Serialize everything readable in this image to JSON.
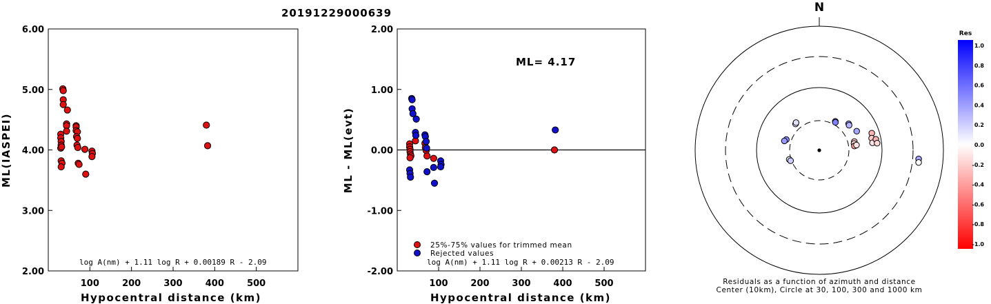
{
  "title": "20191229000639",
  "colors": {
    "accepted": "#dd1111",
    "rejected": "#1111cc"
  },
  "chart_data": [
    {
      "type": "scatter",
      "ylabel": "ML(IASPEI)",
      "xlabel": "Hypocentral distance (km)",
      "formula": "log A(nm) + 1.11 log R + 0.00189 R - 2.09",
      "xlim": [
        0,
        600
      ],
      "ylim": [
        2.0,
        6.0
      ],
      "xticks": [
        "100",
        "200",
        "300",
        "400",
        "500"
      ],
      "yticks": [
        "2.00",
        "3.00",
        "4.00",
        "5.00",
        "6.00"
      ],
      "series": [
        {
          "color": "#dd1111",
          "x": [
            30,
            30,
            31,
            31,
            30,
            32,
            31,
            33,
            31,
            35,
            36,
            36,
            36,
            44,
            44,
            44,
            46,
            67,
            67,
            67,
            70,
            68,
            70,
            69,
            71,
            72,
            74,
            88,
            90,
            105,
            106,
            105,
            380,
            383
          ],
          "y": [
            4.26,
            4.2,
            4.14,
            4.08,
            4.03,
            4.05,
            3.82,
            3.78,
            3.72,
            5.01,
            4.98,
            4.83,
            4.75,
            4.43,
            4.4,
            4.31,
            4.66,
            4.4,
            4.38,
            4.32,
            4.3,
            4.22,
            4.19,
            4.08,
            4.04,
            3.78,
            3.76,
            4.01,
            3.6,
            3.98,
            3.94,
            3.89,
            4.41,
            4.07
          ]
        }
      ]
    },
    {
      "type": "scatter",
      "ylabel": "ML - ML(evt)",
      "xlabel": "Hypocentral distance (km)",
      "annotation": "ML= 4.17",
      "formula": "log A(nm) + 1.11 log R + 0.00213 R - 2.09",
      "xlim": [
        0,
        600
      ],
      "ylim": [
        -2.0,
        2.0
      ],
      "xticks": [
        "100",
        "200",
        "300",
        "400",
        "500"
      ],
      "yticks": [
        "-2.00",
        "-1.00",
        "0.00",
        "1.00",
        "2.00"
      ],
      "legend": {
        "placement": "bottom-left",
        "entries": [
          "25%-75% values for trimmed mean",
          "Rejected values"
        ]
      },
      "series": [
        {
          "color": "#dd1111",
          "x": [
            30,
            30,
            31,
            31,
            32,
            33,
            31,
            44,
            67,
            68,
            70,
            72,
            88,
            380
          ],
          "y": [
            0.1,
            0.05,
            0.01,
            -0.03,
            -0.07,
            -0.1,
            -0.13,
            0.15,
            0.11,
            0.04,
            -0.01,
            -0.1,
            -0.14,
            0.0
          ]
        },
        {
          "color": "#1111cc",
          "x": [
            30,
            31,
            32,
            35,
            36,
            36,
            38,
            44,
            45,
            46,
            67,
            68,
            70,
            71,
            72,
            88,
            90,
            105,
            106,
            105,
            382
          ],
          "y": [
            -0.33,
            -0.39,
            -0.45,
            0.85,
            0.83,
            0.68,
            0.6,
            0.29,
            0.24,
            0.51,
            0.25,
            0.22,
            0.14,
            0.03,
            -0.36,
            -0.29,
            -0.55,
            -0.18,
            -0.24,
            -0.28,
            0.33
          ]
        }
      ]
    },
    {
      "type": "scatter",
      "subtitle_lines": [
        "Residuals as a function of azimuth and distance",
        "Center (10km), Circle at 30, 100, 300 and 1000 km"
      ],
      "north_label": "N",
      "colorbar": {
        "label": "Res",
        "ticks": [
          "1.0",
          "0.8",
          "0.6",
          "0.4",
          "0.2",
          "0.0",
          "-0.2",
          "-0.4",
          "-0.6",
          "-0.8",
          "-1.0"
        ]
      },
      "stations": [
        {
          "az": 288,
          "dist": 36,
          "res": 0.45
        },
        {
          "az": 285,
          "dist": 38,
          "res": 0.4
        },
        {
          "az": 318,
          "dist": 37,
          "res": 0.1
        },
        {
          "az": 320,
          "dist": 38,
          "res": 0.12
        },
        {
          "az": 253,
          "dist": 32,
          "res": 0.05
        },
        {
          "az": 250,
          "dist": 31,
          "res": 0.2
        },
        {
          "az": 29,
          "dist": 34,
          "res": 0.55
        },
        {
          "az": 30,
          "dist": 33,
          "res": 0.5
        },
        {
          "az": 48,
          "dist": 43,
          "res": 0.4
        },
        {
          "az": 50,
          "dist": 42,
          "res": 0.3
        },
        {
          "az": 63,
          "dist": 47,
          "res": 0.35
        },
        {
          "az": 76,
          "dist": 38,
          "res": -0.2
        },
        {
          "az": 79,
          "dist": 37,
          "res": -0.15
        },
        {
          "az": 83,
          "dist": 37,
          "res": -0.35
        },
        {
          "az": 82,
          "dist": 40,
          "res": -0.1
        },
        {
          "az": 72,
          "dist": 76,
          "res": -0.3
        },
        {
          "az": 77,
          "dist": 72,
          "res": -0.2
        },
        {
          "az": 82,
          "dist": 72,
          "res": -0.1
        },
        {
          "az": 79,
          "dist": 83,
          "res": -0.3
        },
        {
          "az": 83,
          "dist": 85,
          "res": -0.15
        },
        {
          "az": 95,
          "dist": 380,
          "res": 0.35
        },
        {
          "az": 97,
          "dist": 385,
          "res": 0.0
        }
      ]
    }
  ]
}
